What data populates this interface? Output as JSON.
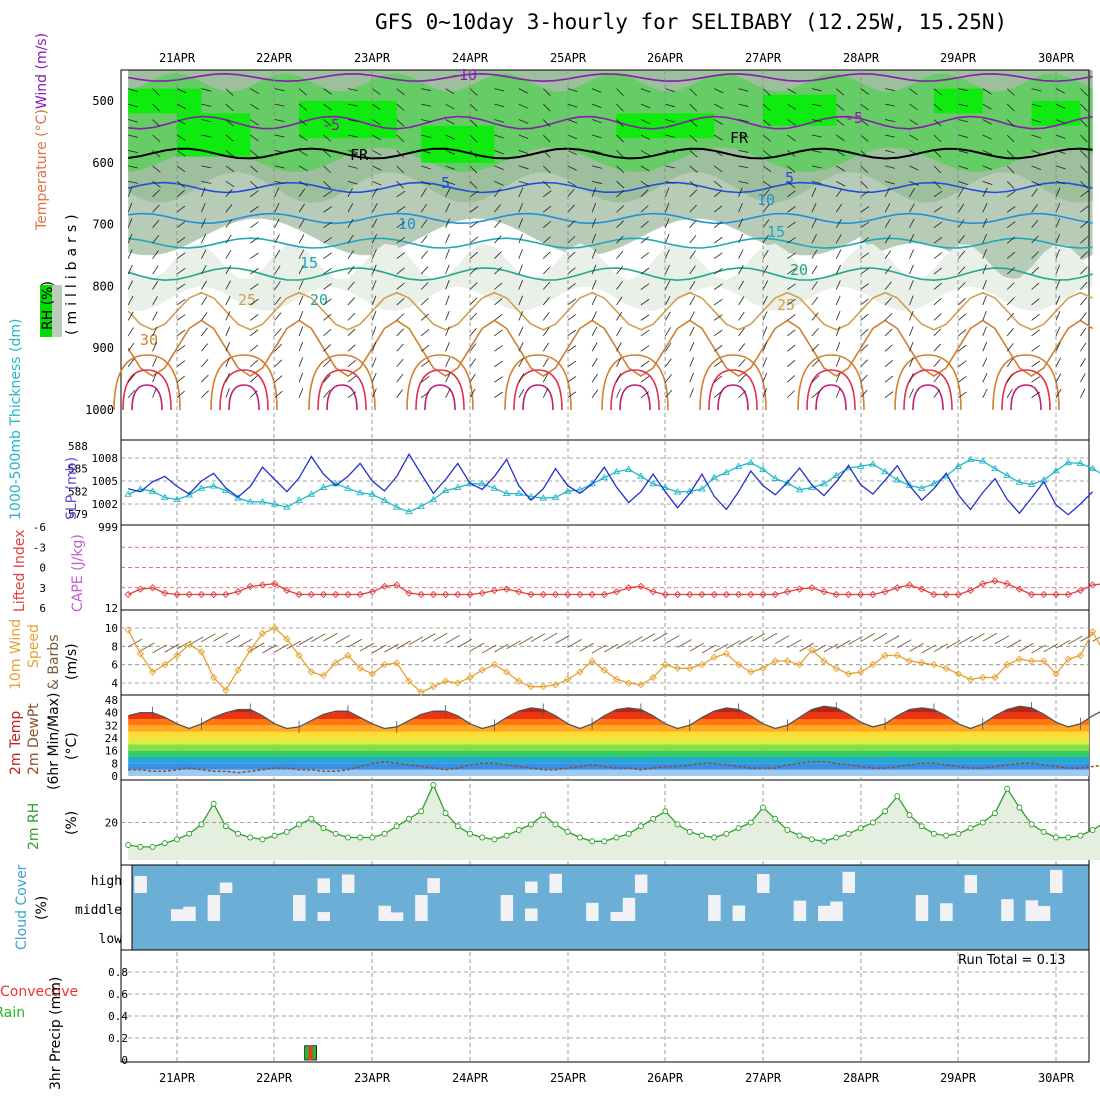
{
  "title": "GFS 0~10day 3-hourly for SELIBABY (12.25W, 15.25N)",
  "dates": [
    "21APR",
    "22APR",
    "23APR",
    "24APR",
    "25APR",
    "26APR",
    "27APR",
    "28APR",
    "29APR",
    "30APR"
  ],
  "colors": {
    "rh_dark": "#00ee00",
    "rh_mid": "#66cc66",
    "rh_light": "#b7ccb7",
    "temp_cold": "#8a1ab0",
    "temp_warm": "#d2a050",
    "temp_hot": "#e03050",
    "slp": "#2030d0",
    "thickness": "#20b8c8",
    "lifted_index": "#e04040",
    "wind_speed": "#e8a030",
    "barb": "#7a5a3a",
    "rh2m": "#30a030",
    "cloud": "#6baed6",
    "precip_total": "#22bb22",
    "precip_conv": "#ee3333"
  },
  "panels": {
    "sounding": {
      "ylabel_wind": "Wind (m/s)",
      "ylabel_temp": "Temperature (°C)",
      "ylabel_rh": "RH (%)",
      "ylabel_units": "(millibars)",
      "yticks": [
        "500",
        "600",
        "700",
        "800",
        "900",
        "1000"
      ],
      "contour_labels": [
        "-10",
        "-5",
        "FR",
        "5",
        "10",
        "15",
        "20",
        "25",
        "30"
      ]
    },
    "slp": {
      "ylabel_left": "1000-500mb Thickness (dm)",
      "ylabel_right": "SLP (mb)",
      "thick_ticks": [
        "588",
        "585",
        "582",
        "579"
      ],
      "slp_ticks": [
        "1008",
        "1005",
        "1002",
        "999"
      ]
    },
    "stability": {
      "ylabel_left": "Lifted Index",
      "ylabel_right": "CAPE (J/kg)",
      "yticks": [
        "-6",
        "-3",
        "0",
        "3",
        "6"
      ],
      "cape_tick": "12"
    },
    "wind10m": {
      "ylabel_a": "10m Wind",
      "ylabel_b": "Speed",
      "ylabel_c": "& Barbs",
      "ylabel_units": "(m/s)",
      "yticks": [
        "10",
        "8",
        "6",
        "4"
      ]
    },
    "temp2m": {
      "ylabel_a": "2m Temp",
      "ylabel_b": "2m DewPt",
      "ylabel_c": "(6hr Min/Max)",
      "ylabel_units": "(°C)",
      "yticks": [
        "48",
        "40",
        "32",
        "24",
        "16",
        "8",
        "0"
      ]
    },
    "rh2m": {
      "ylabel": "2m RH",
      "ylabel_units": "(%)",
      "yticks": [
        "20"
      ]
    },
    "cloud": {
      "ylabel": "Cloud Cover",
      "ylabel_units": "(%)",
      "levels": [
        "high",
        "middle",
        "low"
      ]
    },
    "precip": {
      "ylabel_a": "Total / Rain",
      "ylabel_b": "Convective",
      "ylabel_c": "3hr Precip (mm)",
      "yticks": [
        "0.8",
        "0.6",
        "0.4",
        "0.2",
        "0"
      ],
      "run_total_label": "Run Total = 0.13"
    }
  },
  "chart_data": [
    {
      "type": "line",
      "title": "1000-500mb Thickness (dm) / SLP (mb)",
      "x_start": "20APR 12Z",
      "x_step_hours": 3,
      "series": [
        {
          "name": "SLP (mb)",
          "values": [
            1004.0,
            1003.6,
            1004.9,
            1005.6,
            1004.3,
            1003.3,
            1005.0,
            1006.0,
            1004.1,
            1002.9,
            1004.3,
            1006.8,
            1005.2,
            1003.6,
            1005.4,
            1008.2,
            1005.9,
            1004.4,
            1005.6,
            1007.3,
            1005.0,
            1003.7,
            1005.6,
            1008.5,
            1005.9,
            1003.4,
            1005.2,
            1007.3,
            1004.7,
            1003.9,
            1005.6,
            1007.8,
            1004.4,
            1002.5,
            1004.0,
            1006.6,
            1004.4,
            1003.4,
            1004.6,
            1006.8,
            1004.2,
            1002.2,
            1003.6,
            1005.9,
            1003.6,
            1001.5,
            1003.4,
            1005.9,
            1003.0,
            1001.3,
            1003.6,
            1006.3,
            1004.4,
            1003.2,
            1004.8,
            1006.7,
            1004.5,
            1003.1,
            1004.9,
            1007.0,
            1004.5,
            1003.3,
            1005.1,
            1007.0,
            1004.4,
            1002.5,
            1004.0,
            1006.0,
            1003.2,
            1001.3,
            1003.5,
            1005.3,
            1002.6,
            1000.8,
            1002.8,
            1004.9,
            1001.9,
            1000.6,
            1002.0,
            1003.6
          ],
          "fmt": "slp"
        },
        {
          "name": "1000-500mb Thickness (dm)",
          "values": [
            581.6,
            582.3,
            582.0,
            581.2,
            580.9,
            581.5,
            582.4,
            582.7,
            582.1,
            581.1,
            580.6,
            580.6,
            580.3,
            579.9,
            580.8,
            581.6,
            582.5,
            583.0,
            582.4,
            581.8,
            581.6,
            580.8,
            579.9,
            579.3,
            580.0,
            580.9,
            582.1,
            582.5,
            583.0,
            583.0,
            582.4,
            581.7,
            581.7,
            581.3,
            581.1,
            581.2,
            582.0,
            582.2,
            583.0,
            583.8,
            584.6,
            584.9,
            584.0,
            583.0,
            582.5,
            581.9,
            582.0,
            582.3,
            583.8,
            584.5,
            585.3,
            585.8,
            584.9,
            583.7,
            583.1,
            582.2,
            582.5,
            583.0,
            584.1,
            585.1,
            585.3,
            585.6,
            584.6,
            583.5,
            582.8,
            582.4,
            583.0,
            584.0,
            585.3,
            586.2,
            586.0,
            585.0,
            584.1,
            583.2,
            582.9,
            583.5,
            584.7,
            585.8,
            585.7,
            585.0,
            584.1,
            583.0,
            582.0,
            581.9
          ]
        }
      ]
    },
    {
      "type": "line",
      "title": "Lifted Index",
      "series": [
        {
          "name": "Lifted Index",
          "values": [
            6,
            5.2,
            5.0,
            5.8,
            6,
            6,
            6,
            6,
            6,
            5.6,
            4.8,
            4.6,
            4.4,
            5.4,
            6,
            6,
            6,
            6,
            6,
            6,
            5.6,
            4.8,
            4.6,
            5.8,
            6,
            6,
            6,
            6,
            6,
            5.8,
            5.4,
            5.2,
            5.6,
            6,
            6,
            6,
            6,
            6,
            6,
            6,
            5.6,
            5.0,
            4.8,
            5.6,
            6,
            6,
            6,
            6,
            6,
            6,
            6,
            6,
            6,
            6,
            5.6,
            5.2,
            5.0,
            5.6,
            6,
            6,
            6,
            6,
            5.6,
            5.0,
            4.6,
            5.2,
            6,
            6,
            6,
            5.4,
            4.4,
            4.0,
            4.4,
            5.2,
            6,
            6,
            6,
            6,
            5.4,
            4.6,
            4.4,
            5.6,
            6,
            6
          ]
        }
      ]
    },
    {
      "type": "line",
      "title": "10m Wind Speed (m/s)",
      "series": [
        {
          "name": "10m Wind Speed",
          "values": [
            9.8,
            7.2,
            5.2,
            6.0,
            7.0,
            8.2,
            7.4,
            4.6,
            3.2,
            5.4,
            7.6,
            9.4,
            10.0,
            8.8,
            7.0,
            5.2,
            4.8,
            6.2,
            7.0,
            5.6,
            5.0,
            6.0,
            6.2,
            4.2,
            3.0,
            3.6,
            4.2,
            4.0,
            4.6,
            5.4,
            6.0,
            5.2,
            4.2,
            3.6,
            3.6,
            3.8,
            4.4,
            5.2,
            6.4,
            5.4,
            4.4,
            4.0,
            3.8,
            4.6,
            6.0,
            5.6,
            5.6,
            6.0,
            6.8,
            7.2,
            6.0,
            5.2,
            5.6,
            6.4,
            6.4,
            6.0,
            7.6,
            6.4,
            5.6,
            5.0,
            5.2,
            6.0,
            7.0,
            7.0,
            6.4,
            6.2,
            6.0,
            5.6,
            5.0,
            4.4,
            4.6,
            4.6,
            6.0,
            6.6,
            6.4,
            6.4,
            5.0,
            6.6,
            7.0,
            9.6,
            7.2,
            6.0,
            6.0,
            6.2
          ]
        }
      ]
    },
    {
      "type": "area",
      "title": "2m Temp / 2m DewPt (°C)",
      "series": [
        {
          "name": "2m Temp",
          "values": [
            38,
            40,
            40,
            37,
            33,
            30,
            33,
            37,
            40,
            42,
            42,
            38,
            33,
            30,
            31,
            35,
            39,
            41,
            41,
            37,
            33,
            30,
            31,
            35,
            39,
            41,
            41,
            38,
            33,
            30,
            32,
            37,
            41,
            43,
            42,
            38,
            33,
            30,
            33,
            38,
            42,
            43,
            42,
            38,
            33,
            30,
            32,
            37,
            41,
            43,
            42,
            38,
            33,
            30,
            32,
            37,
            42,
            44,
            43,
            39,
            34,
            31,
            33,
            38,
            42,
            43,
            42,
            38,
            33,
            30,
            33,
            38,
            42,
            44,
            43,
            39,
            34,
            31,
            33,
            38,
            42,
            44,
            43,
            39
          ]
        },
        {
          "name": "2m DewPt",
          "values": [
            4,
            4,
            3,
            3,
            4,
            5,
            4,
            3,
            3,
            2,
            3,
            4,
            5,
            5,
            4,
            4,
            3,
            3,
            4,
            6,
            8,
            9,
            8,
            7,
            6,
            5,
            4,
            5,
            7,
            8,
            8,
            7,
            6,
            5,
            4,
            4,
            5,
            6,
            7,
            6,
            5,
            5,
            4,
            5,
            6,
            6,
            7,
            8,
            8,
            7,
            6,
            5,
            5,
            5,
            7,
            8,
            9,
            9,
            8,
            7,
            6,
            5,
            5,
            6,
            7,
            8,
            8,
            7,
            6,
            5,
            5,
            6,
            7,
            8,
            8,
            7,
            6,
            5,
            5,
            6,
            7,
            8,
            8,
            7
          ]
        }
      ]
    },
    {
      "type": "area",
      "title": "2m RH (%)",
      "series": [
        {
          "name": "2m RH",
          "values": [
            8,
            7,
            7,
            9,
            11,
            14,
            19,
            30,
            18,
            14,
            12,
            11,
            13,
            15,
            19,
            22,
            17,
            14,
            12,
            12,
            12,
            14,
            18,
            22,
            26,
            40,
            25,
            18,
            14,
            12,
            11,
            13,
            16,
            19,
            24,
            19,
            15,
            12,
            10,
            10,
            12,
            14,
            18,
            22,
            26,
            19,
            15,
            13,
            12,
            14,
            17,
            20,
            28,
            22,
            16,
            13,
            11,
            10,
            12,
            14,
            17,
            20,
            26,
            34,
            24,
            18,
            14,
            13,
            14,
            17,
            20,
            25,
            38,
            28,
            19,
            15,
            12,
            12,
            13,
            16,
            20,
            24,
            38,
            28,
            19,
            15,
            13,
            20,
            28
          ]
        }
      ]
    },
    {
      "type": "bar",
      "title": "3hr Precip (mm)",
      "series": [
        {
          "name": "Total / Rain",
          "values": [
            {
              "day": "22APR",
              "hour": 9,
              "mm": 0.13
            }
          ]
        }
      ],
      "ylim": [
        0,
        1
      ]
    }
  ]
}
